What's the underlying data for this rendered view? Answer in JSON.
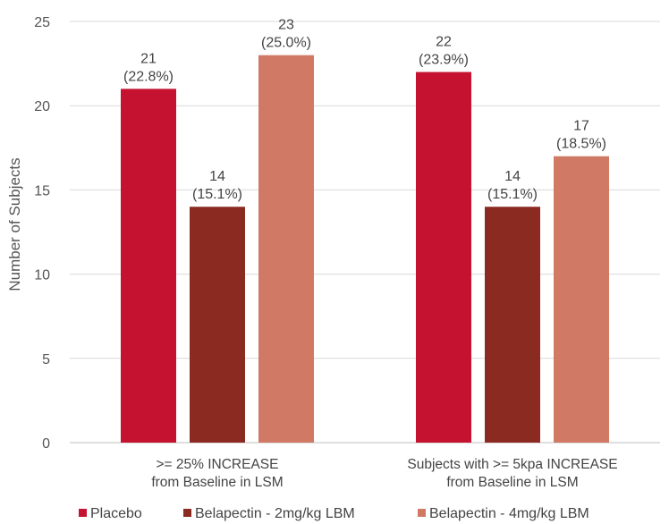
{
  "chart_data": {
    "type": "bar",
    "title": "",
    "xlabel": "",
    "ylabel": "Number of Subjects",
    "ylim": [
      0,
      25
    ],
    "yticks": [
      0,
      5,
      10,
      15,
      20,
      25
    ],
    "grid": "horizontal",
    "legend_position": "bottom",
    "categories": [
      [
        ">= 25% INCREASE",
        "from Baseline in LSM"
      ],
      [
        "Subjects with >= 5kpa INCREASE",
        "from Baseline in LSM"
      ]
    ],
    "series": [
      {
        "name": "Placebo",
        "color": "#c41230",
        "values": [
          21,
          22
        ],
        "labels": [
          "(22.8%)",
          "(23.9%)"
        ]
      },
      {
        "name": "Belapectin - 2mg/kg LBM",
        "color": "#8b2a20",
        "values": [
          14,
          14
        ],
        "labels": [
          "(15.1%)",
          "(15.1%)"
        ]
      },
      {
        "name": "Belapectin - 4mg/kg LBM",
        "color": "#d07a66",
        "values": [
          23,
          17
        ],
        "labels": [
          "(25.0%)",
          "(18.5%)"
        ]
      }
    ]
  }
}
